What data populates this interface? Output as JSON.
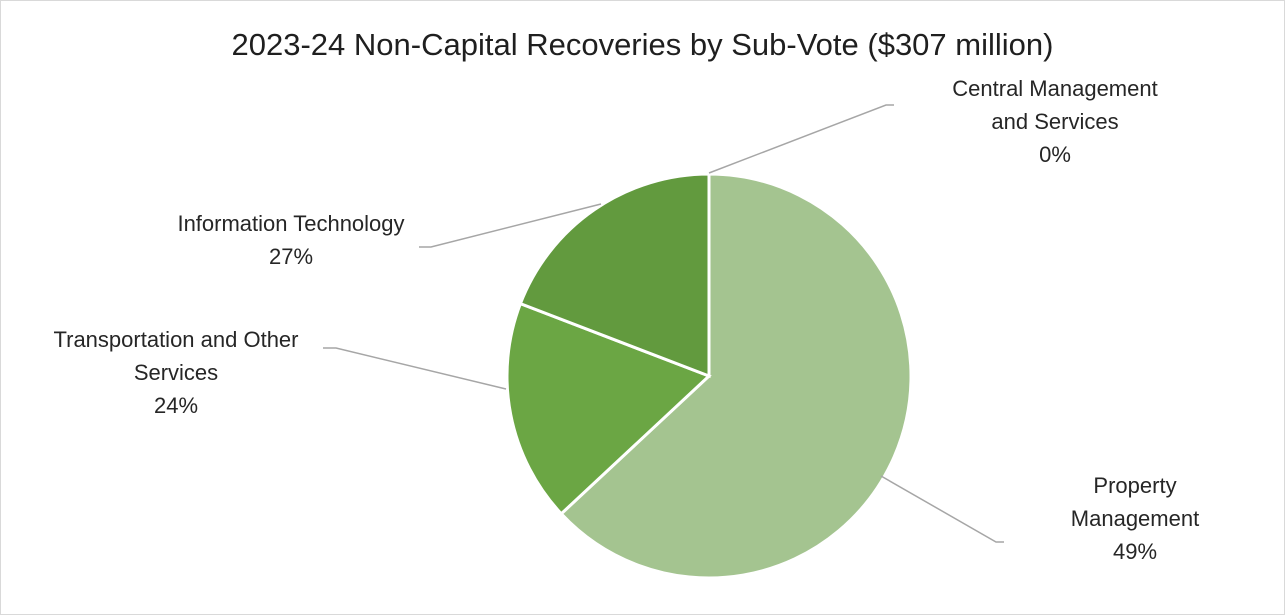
{
  "chart_data": {
    "type": "pie",
    "title": "2023-24 Non-Capital Recoveries by Sub-Vote ($307 million)",
    "slices": [
      {
        "label_lines": [
          "Property",
          "Management"
        ],
        "percent_label": "49%",
        "value": 49,
        "color": "#a4c490"
      },
      {
        "label_lines": [
          "Transportation and Other",
          "Services"
        ],
        "percent_label": "24%",
        "value": 24,
        "color": "#6ba644"
      },
      {
        "label_lines": [
          "Information Technology"
        ],
        "percent_label": "27%",
        "value": 27,
        "color": "#629a3e"
      },
      {
        "label_lines": [
          "Central Management",
          "and Services"
        ],
        "percent_label": "0%",
        "value": 0,
        "color": "#4f7f32"
      }
    ],
    "legend": "none",
    "leader_color": "#a6a6a6"
  }
}
